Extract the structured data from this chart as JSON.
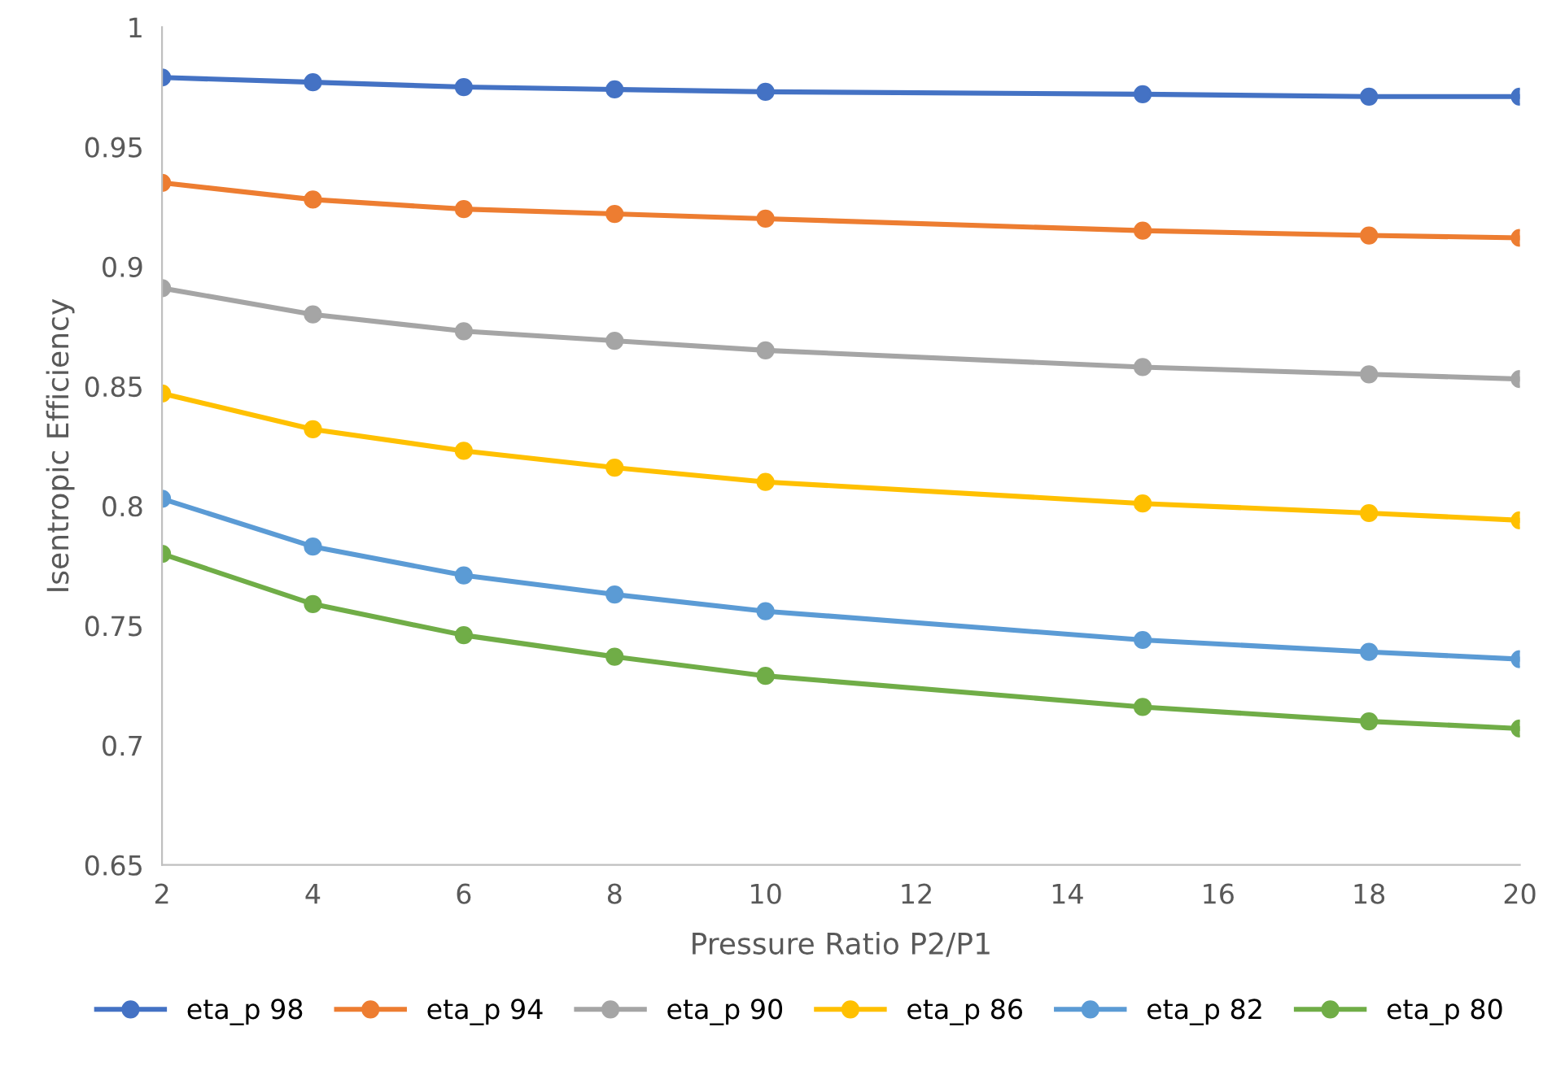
{
  "chart_data": {
    "type": "line",
    "xlabel": "Pressure Ratio P2/P1",
    "ylabel": "Isentropic Efficiency",
    "x": [
      2,
      4,
      6,
      8,
      10,
      15,
      18,
      20
    ],
    "xlim": [
      2,
      20
    ],
    "xticks": [
      2,
      4,
      6,
      8,
      10,
      12,
      14,
      16,
      18,
      20
    ],
    "ylim": [
      0.65,
      1
    ],
    "yticks": [
      0.65,
      0.7,
      0.75,
      0.8,
      0.85,
      0.9,
      0.95,
      1
    ],
    "grid": false,
    "legend": "bottom",
    "marker": "circle",
    "line_style": "solid",
    "series": [
      {
        "name": "eta_p 98",
        "color": "#4472c4",
        "values": [
          0.979,
          0.977,
          0.975,
          0.974,
          0.973,
          0.972,
          0.971,
          0.971
        ]
      },
      {
        "name": "eta_p 94",
        "color": "#ed7d31",
        "values": [
          0.935,
          0.928,
          0.924,
          0.922,
          0.92,
          0.915,
          0.913,
          0.912
        ]
      },
      {
        "name": "eta_p 90",
        "color": "#a5a5a5",
        "values": [
          0.891,
          0.88,
          0.873,
          0.869,
          0.865,
          0.858,
          0.855,
          0.853
        ]
      },
      {
        "name": "eta_p 86",
        "color": "#ffc000",
        "values": [
          0.847,
          0.832,
          0.823,
          0.816,
          0.81,
          0.801,
          0.797,
          0.794
        ]
      },
      {
        "name": "eta_p 82",
        "color": "#5b9bd5",
        "values": [
          0.803,
          0.783,
          0.771,
          0.763,
          0.756,
          0.744,
          0.739,
          0.736
        ]
      },
      {
        "name": "eta_p 80",
        "color": "#70ad47",
        "values": [
          0.78,
          0.759,
          0.746,
          0.737,
          0.729,
          0.716,
          0.71,
          0.707
        ]
      }
    ]
  }
}
